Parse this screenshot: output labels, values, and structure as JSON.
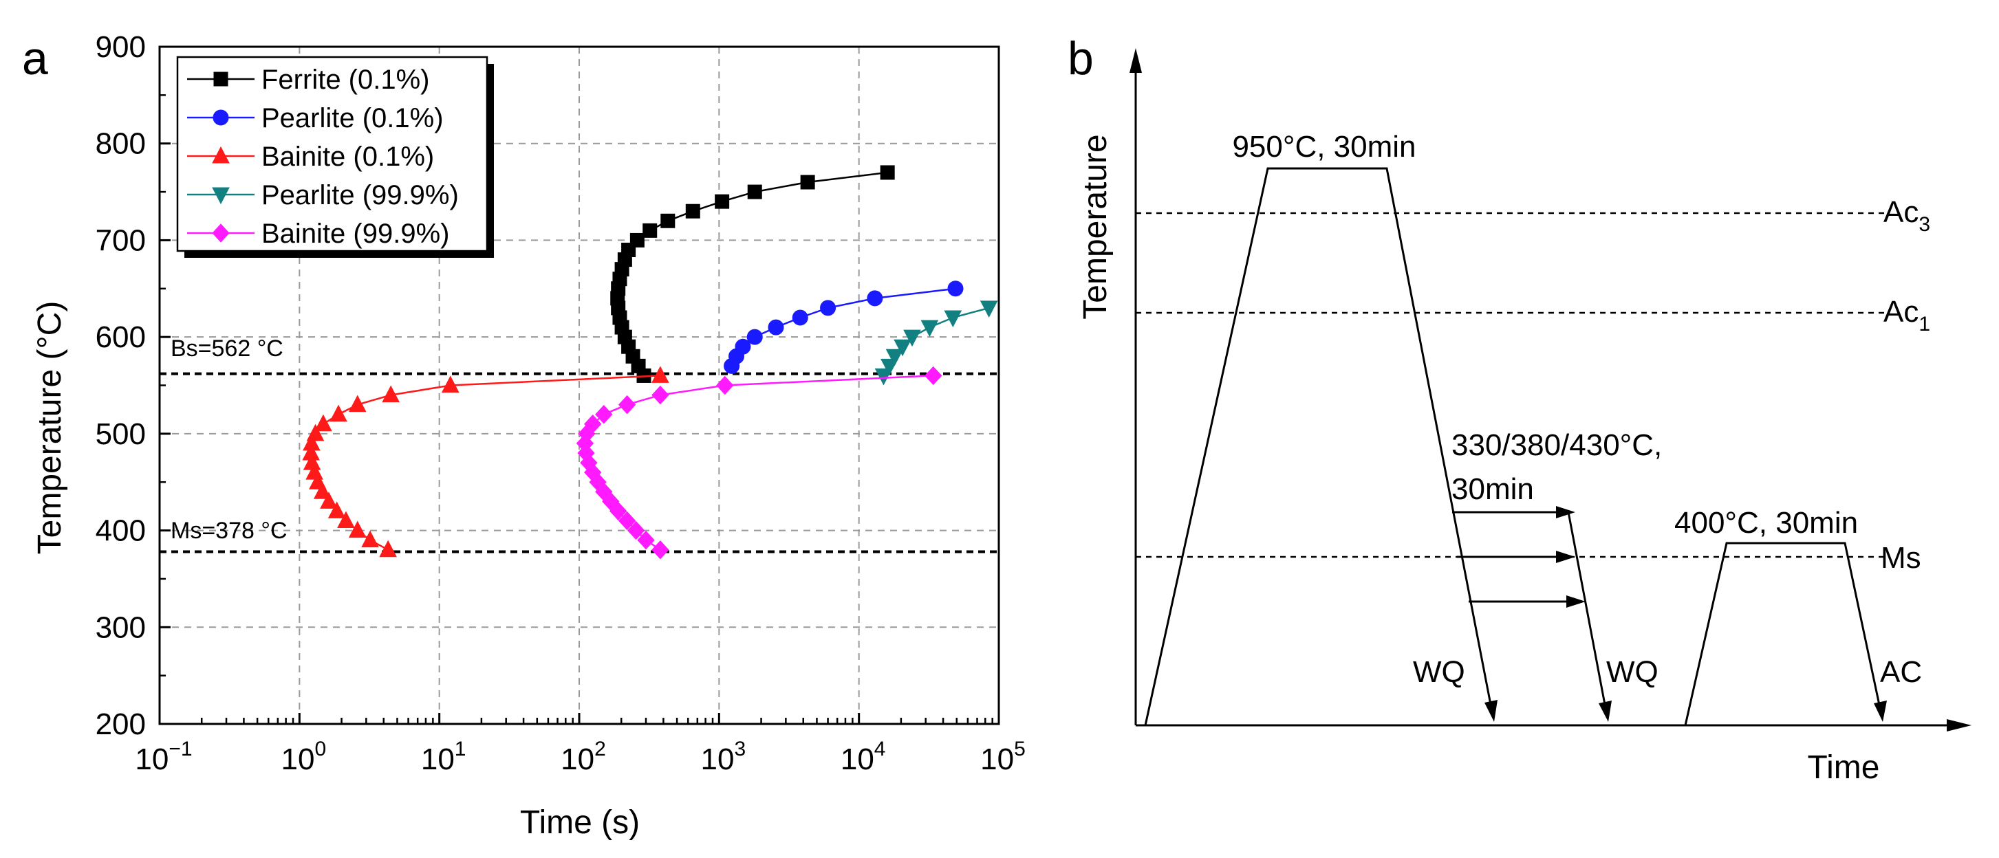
{
  "panels": {
    "a": {
      "label": "a"
    },
    "b": {
      "label": "b"
    }
  },
  "colors": {
    "ferrite": "#000000",
    "pearlite": "#1a1aff",
    "bainite": "#ff1a1a",
    "pearlite999": "#128080",
    "bainite999": "#ff1aff"
  },
  "chart_data": [
    {
      "type": "line",
      "title": "",
      "xlabel": "Time (s)",
      "ylabel": "Temperature (°C)",
      "xscale": "log",
      "xlim": [
        0.1,
        100000
      ],
      "ylim": [
        200,
        900
      ],
      "grid": true,
      "legend_position": "top-left",
      "x_ticks": [
        {
          "base": "10",
          "exp": "−1",
          "value": 0.1
        },
        {
          "base": "10",
          "exp": "0",
          "value": 1
        },
        {
          "base": "10",
          "exp": "1",
          "value": 10
        },
        {
          "base": "10",
          "exp": "2",
          "value": 100
        },
        {
          "base": "10",
          "exp": "3",
          "value": 1000
        },
        {
          "base": "10",
          "exp": "4",
          "value": 10000
        },
        {
          "base": "10",
          "exp": "5",
          "value": 100000
        }
      ],
      "y_ticks": [
        200,
        300,
        400,
        500,
        600,
        700,
        800,
        900
      ],
      "reference_lines": [
        {
          "label": "Bs=562 °C",
          "y": 562
        },
        {
          "label": "Ms=378 °C",
          "y": 378
        }
      ],
      "series": [
        {
          "name": "Ferrite (0.1%)",
          "color_key": "ferrite",
          "marker": "square",
          "points": [
            [
              290,
              560
            ],
            [
              265,
              570
            ],
            [
              242,
              580
            ],
            [
              225,
              590
            ],
            [
              212,
              600
            ],
            [
              202,
              610
            ],
            [
              195,
              620
            ],
            [
              190,
              630
            ],
            [
              188,
              640
            ],
            [
              190,
              650
            ],
            [
              195,
              660
            ],
            [
              202,
              670
            ],
            [
              212,
              680
            ],
            [
              225,
              690
            ],
            [
              260,
              700
            ],
            [
              320,
              710
            ],
            [
              430,
              720
            ],
            [
              650,
              730
            ],
            [
              1050,
              740
            ],
            [
              1800,
              750
            ],
            [
              4300,
              760
            ],
            [
              16000,
              770
            ]
          ]
        },
        {
          "name": "Pearlite (0.1%)",
          "color_key": "pearlite",
          "marker": "circle",
          "points": [
            [
              1230,
              570
            ],
            [
              1330,
              580
            ],
            [
              1480,
              590
            ],
            [
              1800,
              600
            ],
            [
              2550,
              610
            ],
            [
              3800,
              620
            ],
            [
              6000,
              630
            ],
            [
              13000,
              640
            ],
            [
              49000,
              650
            ]
          ]
        },
        {
          "name": "Bainite (0.1%)",
          "color_key": "bainite",
          "marker": "triangle-up",
          "points": [
            [
              4.3,
              380
            ],
            [
              3.2,
              390
            ],
            [
              2.6,
              400
            ],
            [
              2.15,
              410
            ],
            [
              1.85,
              420
            ],
            [
              1.62,
              430
            ],
            [
              1.46,
              440
            ],
            [
              1.35,
              450
            ],
            [
              1.28,
              460
            ],
            [
              1.23,
              470
            ],
            [
              1.21,
              480
            ],
            [
              1.22,
              490
            ],
            [
              1.3,
              500
            ],
            [
              1.48,
              510
            ],
            [
              1.9,
              520
            ],
            [
              2.6,
              530
            ],
            [
              4.5,
              540
            ],
            [
              12,
              550
            ],
            [
              380,
              560
            ]
          ]
        },
        {
          "name": "Pearlite (99.9%)",
          "color_key": "pearlite999",
          "marker": "triangle-down",
          "points": [
            [
              15000,
              560
            ],
            [
              16500,
              570
            ],
            [
              18000,
              580
            ],
            [
              20500,
              590
            ],
            [
              24000,
              600
            ],
            [
              32000,
              610
            ],
            [
              47000,
              620
            ],
            [
              85000,
              630
            ]
          ]
        },
        {
          "name": "Bainite (99.9%)",
          "color_key": "bainite999",
          "marker": "diamond",
          "points": [
            [
              380,
              380
            ],
            [
              300,
              390
            ],
            [
              255,
              400
            ],
            [
              220,
              410
            ],
            [
              190,
              420
            ],
            [
              168,
              430
            ],
            [
              150,
              440
            ],
            [
              136,
              450
            ],
            [
              125,
              460
            ],
            [
              117,
              470
            ],
            [
              112,
              480
            ],
            [
              110,
              490
            ],
            [
              113,
              500
            ],
            [
              125,
              510
            ],
            [
              150,
              520
            ],
            [
              220,
              530
            ],
            [
              380,
              540
            ],
            [
              1100,
              550
            ],
            [
              34000,
              560
            ]
          ]
        }
      ]
    },
    {
      "type": "diagram",
      "xlabel": "Time",
      "ylabel": "Temperature",
      "annotations": {
        "aust": "950°C, 30min",
        "ac3_base": "Ac",
        "ac3_sub": "3",
        "ac1_base": "Ac",
        "ac1_sub": "1",
        "ms": "Ms",
        "iso_line1": "330/380/430°C,",
        "iso_line2": "30min",
        "wq1": "WQ",
        "wq2": "WQ",
        "temper": "400°C, 30min",
        "ac": "AC"
      }
    }
  ]
}
